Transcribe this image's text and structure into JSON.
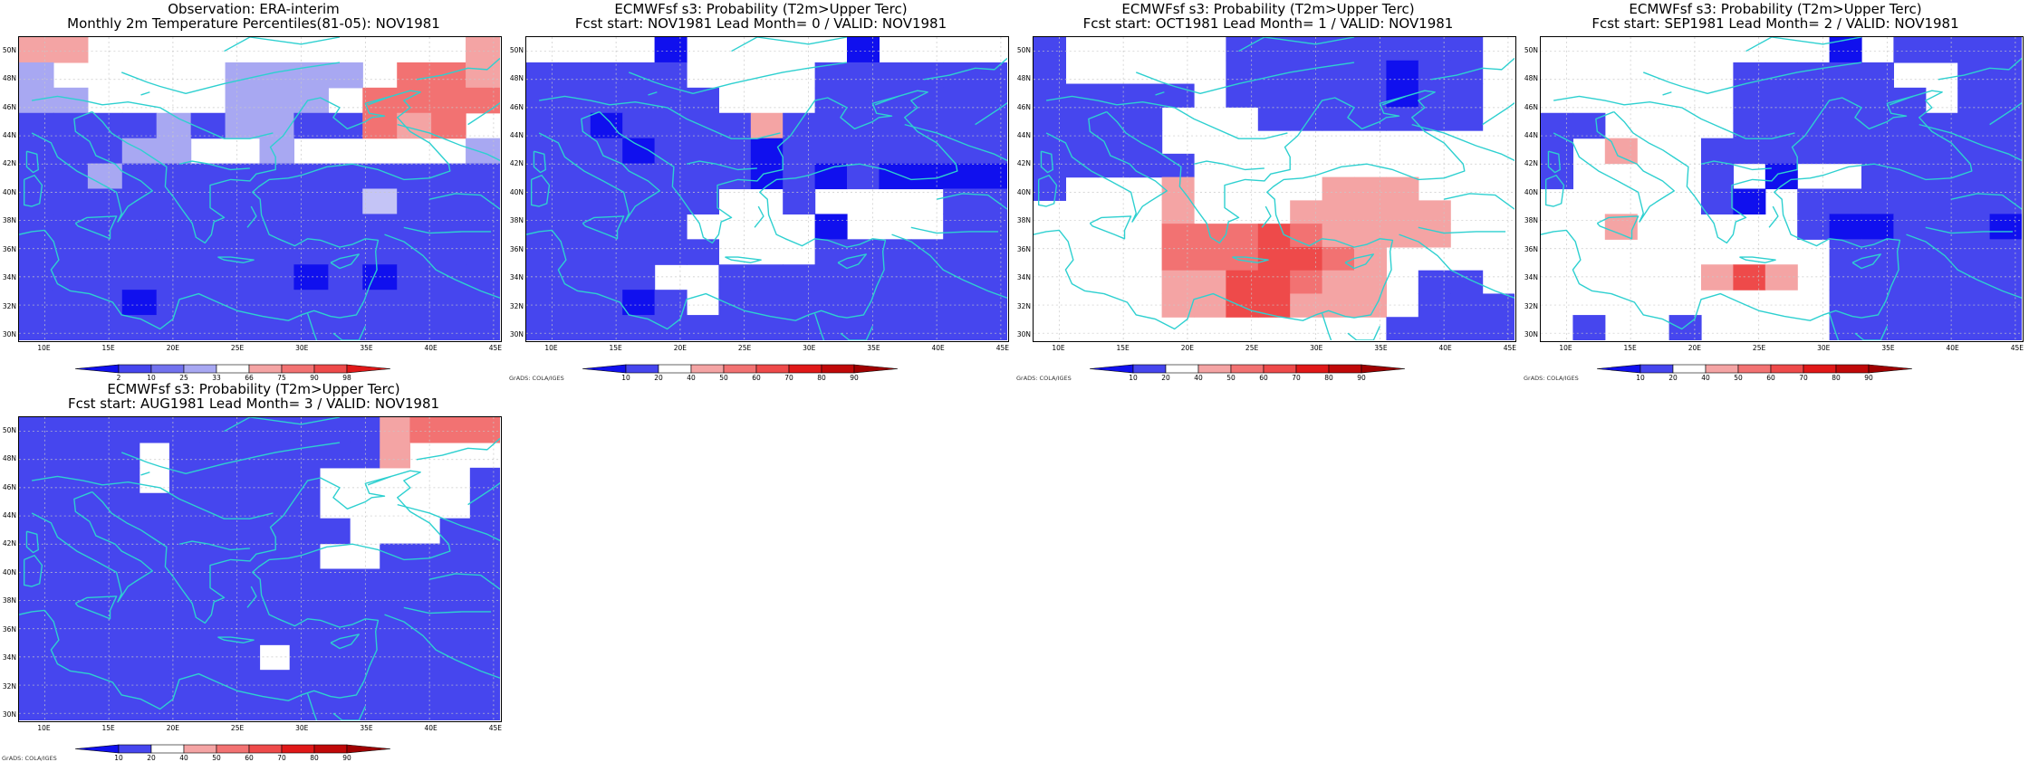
{
  "colors": {
    "coast": "#2ed0d0",
    "grid": "#c8c8c8",
    "blue_dark": "#1010ee",
    "blue_mid": "#4646ee",
    "blue_light": "#7272ee",
    "blue_pale": "#a8a8f2",
    "red_pale": "#f4a4a4",
    "red_light": "#f27272",
    "red_mid": "#ee4a4a",
    "red_dark": "#e01818"
  },
  "lat_labels": [
    "50N",
    "48N",
    "46N",
    "44N",
    "42N",
    "40N",
    "38N",
    "36N",
    "34N",
    "32N",
    "30N"
  ],
  "lon_labels": [
    "10E",
    "15E",
    "20E",
    "25E",
    "30E",
    "35E",
    "40E",
    "45E"
  ],
  "credit_text": "GrADS: COLA/IGES",
  "colorbars": {
    "obs": {
      "labels": [
        "2",
        "10",
        "25",
        "33",
        "66",
        "75",
        "90",
        "98"
      ],
      "colors": [
        "#1010ee",
        "#4646ee",
        "#7272ee",
        "#a8a8f2",
        "#ffffff",
        "#f4a4a4",
        "#f27272",
        "#ee4a4a",
        "#e01818"
      ]
    },
    "prob": {
      "labels": [
        "10",
        "20",
        "40",
        "50",
        "60",
        "70",
        "80",
        "90"
      ],
      "colors": [
        "#1010ee",
        "#4646ee",
        "#ffffff",
        "#f4a4a4",
        "#f27272",
        "#ee4a4a",
        "#e01818",
        "#c00808",
        "#a00000"
      ]
    }
  },
  "panels": [
    {
      "id": "obs",
      "title1": "Observation: ERA-interim",
      "title2": "Monthly 2m Temperature Percentiles(81-05): NOV1981",
      "colorbar": "obs",
      "credit": false,
      "grid": [
        "rrwwwwwwwwwwwr",
        "pwwwwwppppwmmr",
        "ppwwwwpppwmmmm",
        "bbbbpbppbbmrmw",
        "bbbppwwpwwwwwp",
        "bbpbbbbbbbbbbb",
        "bbbbbbbbbbqbbb",
        "bbbbbbbbbbbbbb",
        "bbbbbbbbbbbbbb",
        "bbbbbbbbdbdbbb",
        "bbbdbbbbbbbbbb",
        "bbbbbbbbbbbbbb"
      ]
    },
    {
      "id": "l0",
      "title1": "ECMWFsf s3: Probability (T2m>Upper Terc)",
      "title2": "Fcst start: NOV1981   Lead Month= 0 / VALID: NOV1981",
      "colorbar": "prob",
      "credit": true,
      "grid": [
        "wwwwdwwwwwdwwww",
        "bbbbbwwwwbbbbbb",
        "bbbbbbwwwbbbbbb",
        "bbdbbbbpbbbbbbb",
        "bbbdbbbdbbbbbbb",
        "bbbbbbbdbdbdddd",
        "bbbbbbwwbwwwwbb",
        "bbbbbwwwwdwwwbb",
        "bbbbbbwwwbbbbbb",
        "bbbbwwbbbbbbbbb",
        "bbbdbwbbbbbbbbb",
        "bbbbbbbbbbbbbbb"
      ]
    },
    {
      "id": "l1",
      "title1": "ECMWFsf s3: Probability (T2m>Upper Terc)",
      "title2": "Fcst start: OCT1981   Lead Month= 1 / VALID: NOV1981",
      "colorbar": "prob",
      "credit": true,
      "grid": [
        "bwwwwwbbbbbbbbw",
        "bwwwwwbbbbbdbbw",
        "bbbbbwbbbbbdbbw",
        "bbbbwwwbbbbbbbw",
        "bbbbwwwwwwwwwww",
        "bbbbbwwwwwwwwww",
        "bwwwpwwwwpppwww",
        "wwwwpwwwpppppww",
        "wwwwrrrmrppppww",
        "wwwwrrrmmrpwwww",
        "wwwwppmmrppwbbw",
        "wwwwppmmpppwbbb",
        "wwwwwwwwwwwbbbb"
      ]
    },
    {
      "id": "l2",
      "title1": "ECMWFsf s3: Probability (T2m>Upper Terc)",
      "title2": "Fcst start: SEP1981   Lead Month= 2 / VALID: NOV1981",
      "colorbar": "prob",
      "credit": true,
      "grid": [
        "wwwwwwwwwdwbbbb",
        "wwwwwwbbbbbwwbb",
        "wwwwwwbbbbbbwbb",
        "bbwwwwbbbbbbbbb",
        "bwpwwbbbbbbbbbb",
        "bwwwwbwdwwbbbbb",
        "wwwwwbdwbbbbbbb",
        "wwpwwwwwbddbbbd",
        "wwwwwwwwwbbbbbb",
        "wwwwwpmpwbbbbbb",
        "wwwwwwwwwbbbbbb",
        "wbwwbwwwwbbbbbb"
      ]
    },
    {
      "id": "l3",
      "title1": "ECMWFsf s3: Probability (T2m>Upper Terc)",
      "title2": "Fcst start: AUG1981   Lead Month= 3 / VALID: NOV1981",
      "colorbar": "prob",
      "credit": true,
      "grid": [
        "bbbbbbbbbbbbprrr",
        "bbbbwbbbbbbbpwww",
        "bbbbwbbbbbwwwwwb",
        "bbbbbbbbbbwwwwwb",
        "bbbbbbbbbbbwwwbb",
        "bbbbbbbbbbwwbbbb",
        "bbbbbbbbbbbbbbbb",
        "bbbbbbbbbbbbbbbb",
        "bbbbbbbbbbbbbbbb",
        "bbbbbbbbwbbbbbbb",
        "bbbbbbbbbbbbbbbb",
        "bbbbbbbbbbbbbbbb"
      ]
    }
  ]
}
